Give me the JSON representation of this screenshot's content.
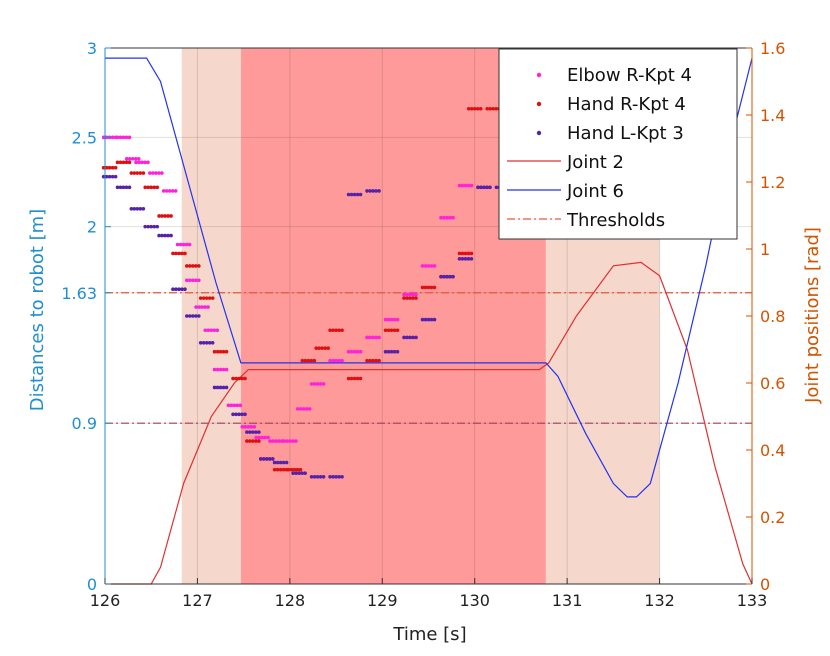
{
  "chart_data": {
    "type": "line",
    "xlabel": "Time [s]",
    "ylabel_left": "Distances to robot [m]",
    "ylabel_right": "Joint positions [rad]",
    "xlim": [
      126,
      133
    ],
    "ylim_left": [
      0,
      3
    ],
    "ylim_right": [
      0,
      1.6
    ],
    "x_ticks": [
      "126",
      "127",
      "128",
      "129",
      "130",
      "131",
      "132",
      "133"
    ],
    "x_tick_values": [
      126,
      127,
      128,
      129,
      130,
      131,
      132,
      133
    ],
    "y_left_ticks": [
      "0",
      "0.9",
      "1.63",
      "2",
      "2.5",
      "3"
    ],
    "y_left_tick_values": [
      0,
      0.9,
      1.63,
      2,
      2.5,
      3
    ],
    "y_right_ticks": [
      "0",
      "0.2",
      "0.4",
      "0.6",
      "0.8",
      "1",
      "1.2",
      "1.4",
      "1.6"
    ],
    "y_right_tick_values": [
      0,
      0.2,
      0.4,
      0.6,
      0.8,
      1,
      1.2,
      1.4,
      1.6
    ],
    "shaded_regions": [
      {
        "name": "slow-zone-1",
        "from": 126.83,
        "to": 127.47,
        "color": "#f5d7cc"
      },
      {
        "name": "stop-zone",
        "from": 127.47,
        "to": 130.77,
        "color": "#ff9a9a"
      },
      {
        "name": "slow-zone-2",
        "from": 130.77,
        "to": 132.0,
        "color": "#f5d7cc"
      }
    ],
    "thresholds": [
      {
        "name": "Thresholds",
        "value": 1.63,
        "color": "#e05a3a"
      },
      {
        "name": "Thresholds",
        "value": 0.9,
        "color": "#a0405a"
      }
    ],
    "series": [
      {
        "name": "Elbow R-Kpt 4",
        "kind": "points",
        "axis": "left",
        "color": "#ff22dd",
        "x": [
          126.05,
          126.2,
          126.3,
          126.4,
          126.55,
          126.7,
          126.85,
          126.95,
          127.05,
          127.15,
          127.25,
          127.4,
          127.55,
          127.7,
          127.85,
          128.0,
          128.15,
          128.3,
          128.5,
          128.7,
          128.9,
          129.1,
          129.3,
          129.5,
          129.7,
          129.9,
          130.1
        ],
        "y": [
          2.5,
          2.5,
          2.38,
          2.36,
          2.3,
          2.2,
          1.9,
          1.7,
          1.55,
          1.42,
          1.2,
          1.0,
          0.88,
          0.82,
          0.8,
          0.8,
          0.98,
          1.12,
          1.25,
          1.3,
          1.38,
          1.48,
          1.62,
          1.78,
          2.05,
          2.23,
          2.22
        ]
      },
      {
        "name": "Hand R-Kpt 4",
        "kind": "points",
        "axis": "left",
        "color": "#dd1111",
        "x": [
          126.05,
          126.2,
          126.35,
          126.5,
          126.65,
          126.8,
          126.95,
          127.1,
          127.25,
          127.45,
          127.6,
          127.75,
          127.9,
          128.05,
          128.2,
          128.35,
          128.5,
          128.7,
          128.9,
          129.1,
          129.3,
          129.5,
          129.7,
          129.9,
          130.0,
          130.2,
          130.4
        ],
        "y": [
          2.33,
          2.36,
          2.3,
          2.22,
          2.06,
          1.85,
          1.78,
          1.6,
          1.3,
          1.15,
          0.8,
          0.7,
          0.64,
          0.64,
          1.25,
          1.32,
          1.42,
          1.15,
          1.25,
          1.42,
          1.6,
          1.66,
          1.72,
          1.85,
          2.66,
          2.66,
          2.64
        ]
      },
      {
        "name": "Hand L-Kpt 3",
        "kind": "points",
        "axis": "left",
        "color": "#5522aa",
        "x": [
          126.05,
          126.2,
          126.35,
          126.5,
          126.65,
          126.8,
          126.95,
          127.1,
          127.25,
          127.45,
          127.6,
          127.75,
          127.9,
          128.1,
          128.3,
          128.5,
          128.7,
          128.9,
          129.1,
          129.3,
          129.5,
          129.7,
          129.9,
          130.1,
          130.3
        ],
        "y": [
          2.28,
          2.22,
          2.1,
          2.0,
          1.95,
          1.65,
          1.5,
          1.35,
          1.1,
          0.95,
          0.85,
          0.7,
          0.68,
          0.62,
          0.6,
          0.6,
          2.18,
          2.2,
          1.3,
          1.38,
          1.48,
          1.72,
          1.82,
          2.22,
          2.22
        ]
      },
      {
        "name": "Joint 2",
        "kind": "line",
        "axis": "right",
        "color": "#e03030",
        "x": [
          126.0,
          126.5,
          126.6,
          126.85,
          127.15,
          127.4,
          127.55,
          130.7,
          130.8,
          131.1,
          131.5,
          131.8,
          132.0,
          132.3,
          132.6,
          132.9,
          133.0
        ],
        "y": [
          0,
          0,
          0.05,
          0.3,
          0.5,
          0.6,
          0.64,
          0.64,
          0.66,
          0.8,
          0.95,
          0.96,
          0.92,
          0.7,
          0.35,
          0.06,
          0
        ]
      },
      {
        "name": "Joint 6",
        "kind": "line",
        "axis": "right",
        "color": "#2233ee",
        "x": [
          126.0,
          126.45,
          126.6,
          126.9,
          127.2,
          127.47,
          127.55,
          130.77,
          130.9,
          131.2,
          131.5,
          131.65,
          131.75,
          131.9,
          132.2,
          132.5,
          132.8,
          133.0
        ],
        "y": [
          1.57,
          1.57,
          1.5,
          1.2,
          0.9,
          0.66,
          0.66,
          0.66,
          0.62,
          0.45,
          0.3,
          0.26,
          0.26,
          0.3,
          0.6,
          0.95,
          1.35,
          1.57
        ]
      }
    ],
    "legend": [
      "Elbow R-Kpt 4",
      "Hand R-Kpt 4",
      "Hand L-Kpt 3",
      "Joint 2",
      "Joint 6",
      "Thresholds"
    ],
    "legend_position": "top-right"
  }
}
